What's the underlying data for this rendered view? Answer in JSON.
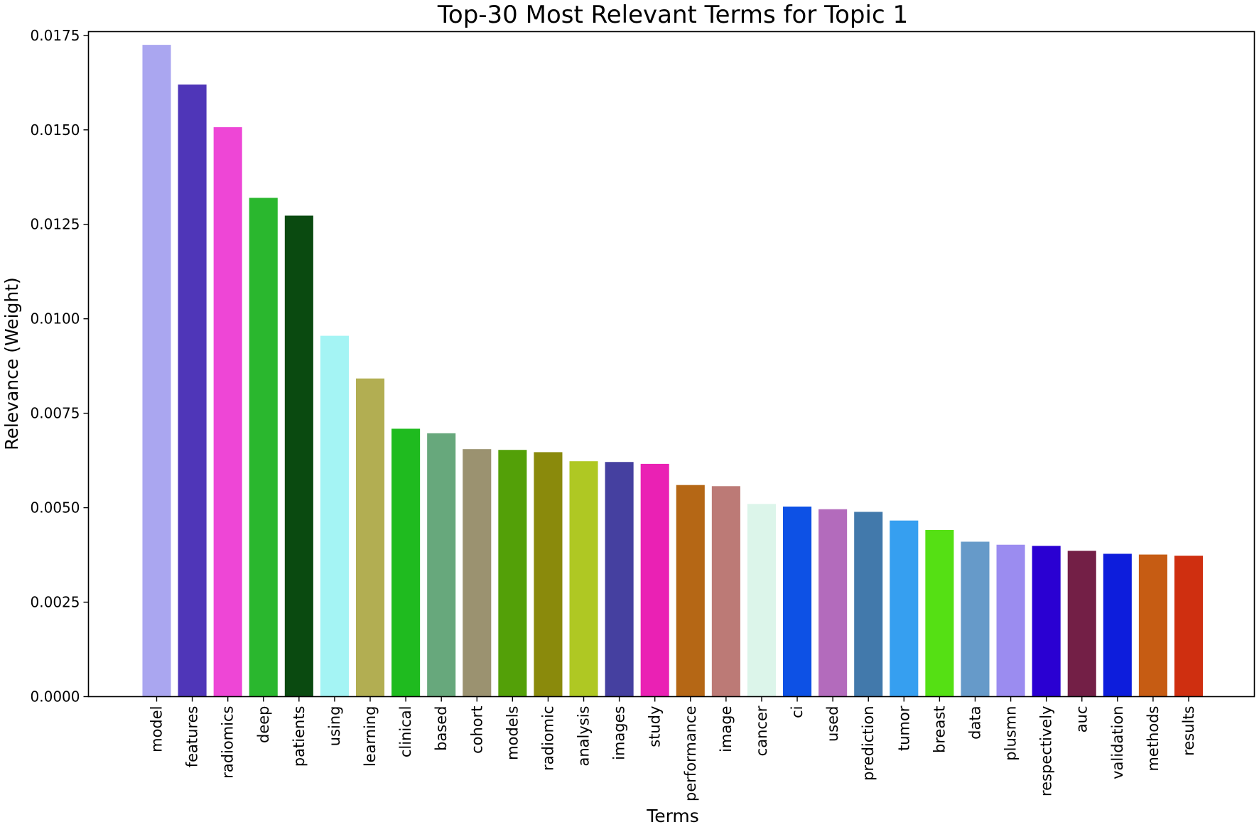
{
  "chart_data": {
    "type": "bar",
    "title": "Top-30 Most Relevant Terms for Topic 1",
    "xlabel": "Terms",
    "ylabel": "Relevance (Weight)",
    "ylim": [
      0,
      0.0176
    ],
    "yticks": [
      "0.0000",
      "0.0025",
      "0.0050",
      "0.0075",
      "0.0100",
      "0.0125",
      "0.0150",
      "0.0175"
    ],
    "ytick_values": [
      0,
      0.0025,
      0.005,
      0.0075,
      0.01,
      0.0125,
      0.015,
      0.0175
    ],
    "grid": false,
    "legend": "none",
    "categories": [
      "model",
      "features",
      "radiomics",
      "deep",
      "patients",
      "using",
      "learning",
      "clinical",
      "based",
      "cohort",
      "models",
      "radiomic",
      "analysis",
      "images",
      "study",
      "performance",
      "image",
      "cancer",
      "ci",
      "used",
      "prediction",
      "tumor",
      "breast",
      "data",
      "plusmn",
      "respectively",
      "auc",
      "validation",
      "methods",
      "results"
    ],
    "values": [
      0.01725,
      0.0162,
      0.01507,
      0.0132,
      0.01273,
      0.00955,
      0.00842,
      0.00709,
      0.00697,
      0.00655,
      0.00653,
      0.00647,
      0.00623,
      0.00621,
      0.00616,
      0.0056,
      0.00557,
      0.0051,
      0.00503,
      0.00496,
      0.00489,
      0.00466,
      0.00441,
      0.0041,
      0.00402,
      0.00399,
      0.00386,
      0.00378,
      0.00376,
      0.00373
    ],
    "colors": [
      "#aaa6f0",
      "#4f36b8",
      "#ee46d6",
      "#2ab72e",
      "#0a4a10",
      "#a4f4f4",
      "#b2ae52",
      "#1fbb1f",
      "#67a87c",
      "#9b9270",
      "#53a008",
      "#8a8a0c",
      "#afc823",
      "#4540a0",
      "#ea21b4",
      "#b56715",
      "#bc7a76",
      "#dcf5ea",
      "#0d51e5",
      "#b36bbc",
      "#4279ab",
      "#369ff0",
      "#55e014",
      "#669ac9",
      "#9b8cf0",
      "#2a00d2",
      "#731f46",
      "#0d1ddc",
      "#c65c13",
      "#cf2f10"
    ]
  }
}
